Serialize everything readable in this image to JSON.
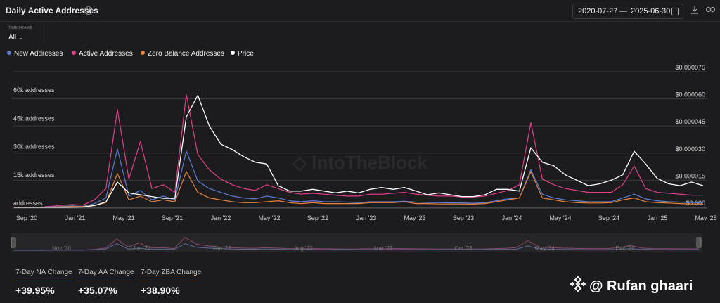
{
  "header": {
    "title": "Daily Active Addresses",
    "help_icon": "help-circle-icon",
    "date_start": "2020-07-27",
    "date_separator": "—",
    "date_end": "2025-06-30",
    "calendar_icon": "calendar-icon",
    "download_icon": "download-icon",
    "link_icon": "link-icon"
  },
  "timeframe": {
    "label": "TIME FRAME",
    "value": "All ⌄"
  },
  "legend": [
    {
      "name": "New Addresses",
      "color": "#5b7bd5"
    },
    {
      "name": "Active Addresses",
      "color": "#e0408a"
    },
    {
      "name": "Zero Balance Addresses",
      "color": "#e8823c"
    },
    {
      "name": "Price",
      "color": "#ffffff"
    }
  ],
  "stats": [
    {
      "label": "7-Day NA Change",
      "value": "+39.95%",
      "color": "#3f5fd8"
    },
    {
      "label": "7-Day AA Change",
      "value": "+35.07%",
      "color": "#3ec95a"
    },
    {
      "label": "7-Day ZBA Change",
      "value": "+38.90%",
      "color": "#e8823c"
    }
  ],
  "watermark": {
    "text": "@ Rufan ghaari",
    "icon": "binance-logo-icon"
  },
  "navigator": {
    "labels": [
      "Nov '20",
      "Jun '21",
      "Jan '22",
      "Aug '22",
      "Mar '23",
      "Oct '23",
      "May '24",
      "Dec '24"
    ]
  },
  "chart_data": {
    "type": "line",
    "x": [
      "2020-09",
      "2020-10",
      "2020-11",
      "2020-12",
      "2021-01",
      "2021-02",
      "2021-03",
      "2021-04",
      "2021-05-01",
      "2021-05-12",
      "2021-05-25",
      "2021-06",
      "2021-07",
      "2021-08",
      "2021-09",
      "2021-10-05",
      "2021-10-20",
      "2021-11",
      "2021-12",
      "2022-01",
      "2022-02",
      "2022-03",
      "2022-04",
      "2022-05",
      "2022-06",
      "2022-07",
      "2022-08",
      "2022-09",
      "2022-10",
      "2022-11",
      "2022-12",
      "2023-01",
      "2023-02",
      "2023-03",
      "2023-04",
      "2023-05",
      "2023-06",
      "2023-07",
      "2023-08",
      "2023-09",
      "2023-10",
      "2023-11",
      "2023-12",
      "2024-01",
      "2024-02",
      "2024-03",
      "2024-04",
      "2024-05",
      "2024-06",
      "2024-07",
      "2024-08",
      "2024-09",
      "2024-10",
      "2024-11",
      "2024-12",
      "2025-01",
      "2025-02",
      "2025-03",
      "2025-04",
      "2025-05",
      "2025-06"
    ],
    "series": [
      {
        "name": "New Addresses",
        "axis": "left",
        "values": [
          0,
          0,
          0,
          200,
          400,
          800,
          500,
          2000,
          5000,
          31000,
          6000,
          9000,
          4000,
          6000,
          4000,
          30000,
          14000,
          10000,
          8000,
          6000,
          5000,
          4500,
          6000,
          5000,
          3500,
          3000,
          3500,
          3000,
          3000,
          2800,
          2500,
          3000,
          3000,
          3000,
          3200,
          2800,
          2600,
          2500,
          2400,
          2400,
          2200,
          2500,
          3500,
          4500,
          5000,
          20000,
          7000,
          5000,
          4000,
          3500,
          3000,
          3000,
          3000,
          5000,
          7000,
          4500,
          3500,
          3000,
          2800,
          2500,
          2500
        ]
      },
      {
        "name": "Active Addresses",
        "axis": "left",
        "values": [
          0,
          0,
          0,
          500,
          1000,
          1500,
          1200,
          4000,
          10000,
          52000,
          15000,
          35000,
          10000,
          12000,
          8000,
          60000,
          28000,
          20000,
          15000,
          12000,
          10000,
          9000,
          12000,
          10000,
          8000,
          7000,
          7500,
          7000,
          6500,
          6000,
          6000,
          7000,
          7000,
          7500,
          8000,
          7000,
          6500,
          6000,
          6000,
          5500,
          5500,
          6000,
          7500,
          9000,
          12000,
          45000,
          15000,
          12000,
          10000,
          9000,
          8000,
          8000,
          8000,
          12000,
          22000,
          10000,
          8000,
          7500,
          7000,
          6500,
          6500
        ]
      },
      {
        "name": "Zero Balance Addresses",
        "axis": "left",
        "values": [
          0,
          0,
          0,
          100,
          300,
          500,
          400,
          1000,
          2500,
          18000,
          4000,
          6000,
          3000,
          4000,
          3000,
          19000,
          8000,
          5000,
          4000,
          3000,
          2500,
          2500,
          3000,
          3500,
          2500,
          2000,
          2500,
          2000,
          2000,
          2000,
          2000,
          2500,
          2500,
          2500,
          3000,
          2000,
          2000,
          1800,
          1800,
          1800,
          1700,
          2000,
          3000,
          4000,
          5000,
          19000,
          5000,
          4000,
          3000,
          2500,
          2300,
          2300,
          2500,
          4000,
          5000,
          3000,
          2500,
          2300,
          2000,
          1800,
          1800
        ]
      },
      {
        "name": "Price",
        "axis": "right",
        "values": [
          0,
          0,
          0,
          0,
          0,
          1e-07,
          2e-07,
          1e-06,
          3e-06,
          1.4e-05,
          8e-06,
          7e-06,
          6e-06,
          5e-06,
          5e-06,
          5e-05,
          6.2e-05,
          4.5e-05,
          3.5e-05,
          3.2e-05,
          2.8e-05,
          2.5e-05,
          2.4e-05,
          1.2e-05,
          9e-06,
          9e-06,
          1e-05,
          9e-06,
          8e-06,
          9e-06,
          8e-06,
          1e-05,
          1.1e-05,
          1e-05,
          1.1e-05,
          9e-06,
          7e-06,
          8e-06,
          7e-06,
          6e-06,
          6e-06,
          7e-06,
          1e-05,
          1e-05,
          9e-06,
          3.3e-05,
          2.5e-05,
          2.3e-05,
          1.8e-05,
          1.5e-05,
          1.2e-05,
          1.3e-05,
          1.5e-05,
          1.8e-05,
          3.1e-05,
          2.4e-05,
          1.6e-05,
          1.3e-05,
          1.2e-05,
          1.4e-05,
          1.2e-05
        ]
      }
    ],
    "y_left": {
      "ticks": [
        0,
        15000,
        30000,
        45000,
        60000
      ],
      "tick_labels": [
        "addresses",
        "15k addresses",
        "30k addresses",
        "45k addresses",
        "60k addresses"
      ],
      "ylim": [
        0,
        72000
      ]
    },
    "y_right": {
      "ticks": [
        0,
        1.5e-05,
        3e-05,
        4.5e-05,
        6e-05,
        7.5e-05
      ],
      "tick_labels": [
        "$0.000",
        "$0.000015",
        "$0.000030",
        "$0.000045",
        "$0.000060",
        "$0.000075"
      ],
      "ylim": [
        0,
        7.5e-05
      ]
    },
    "x_ticks": [
      "Sep '20",
      "Jan '21",
      "May '21",
      "Sep '21",
      "Jan '22",
      "May '22",
      "Sep '22",
      "Jan '23",
      "May '23",
      "Sep '23",
      "Jan '24",
      "May '24",
      "Sep '24",
      "Jan '25",
      "May '25"
    ],
    "grid": true,
    "legend_position": "top-left"
  }
}
